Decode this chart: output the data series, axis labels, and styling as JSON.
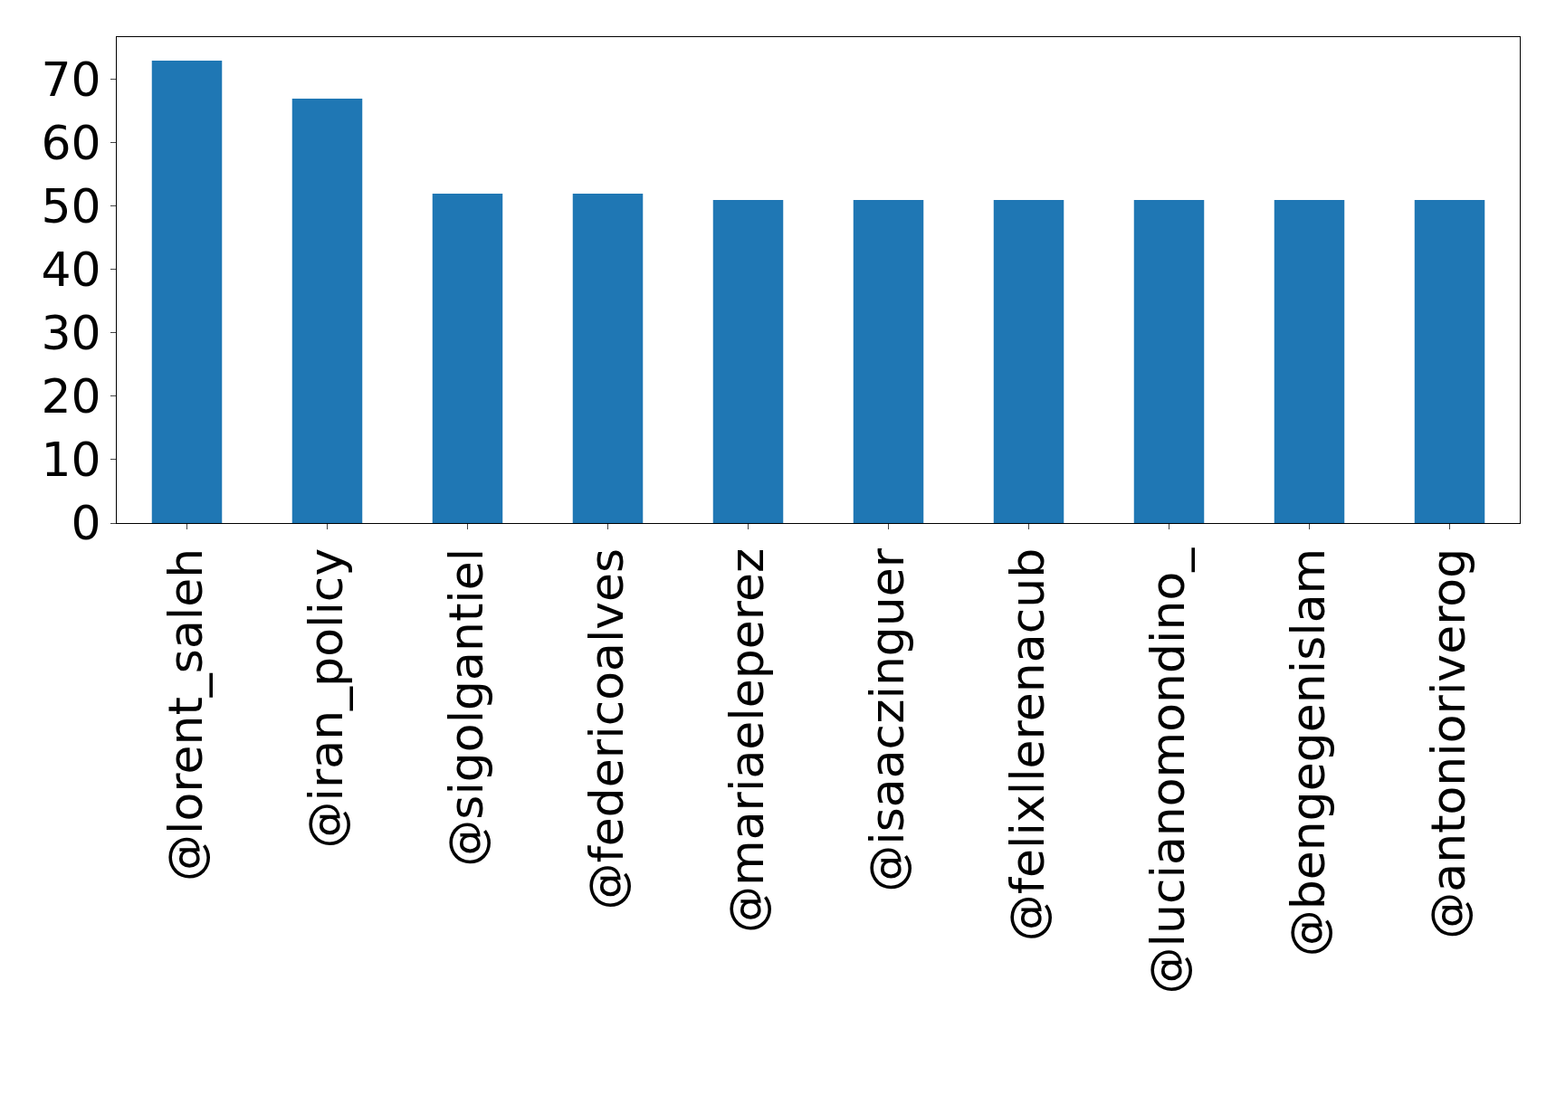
{
  "chart_data": {
    "type": "bar",
    "categories": [
      "@lorent_saleh",
      "@iran_policy",
      "@sigolgantiel",
      "@federicoalves",
      "@mariaeleperez",
      "@isaaczinguer",
      "@felixllerenacub",
      "@lucianomondino_",
      "@bengegenislam",
      "@antonioriverog"
    ],
    "values": [
      73,
      67,
      52,
      52,
      51,
      51,
      51,
      51,
      51,
      51
    ],
    "color": "#1f77b4",
    "ylim": [
      0,
      76.7
    ],
    "yticks": [
      0,
      10,
      20,
      30,
      40,
      50,
      60,
      70
    ],
    "legend": false
  }
}
